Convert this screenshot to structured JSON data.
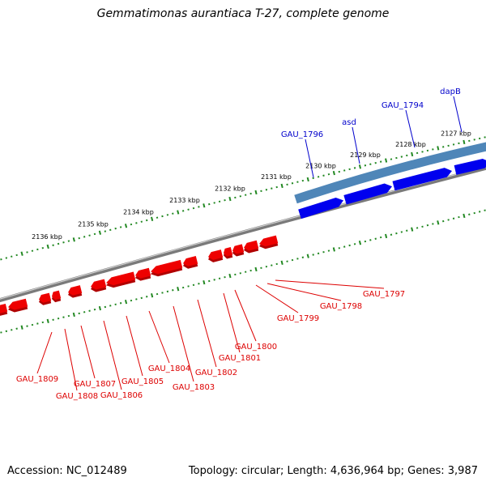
{
  "title": "Gemmatimonas aurantiaca T-27, complete genome",
  "footer": {
    "accession": "Accession: NC_012489",
    "summary": "Topology: circular; Length: 4,636,964 bp; Genes: 3,987"
  },
  "colors": {
    "backbone": "#7a7a7a",
    "tick": "#228822",
    "forward_gene": "#0000ee",
    "forward_gene_highlight": "#4f86b8",
    "reverse_gene": "#ee0000",
    "forward_label": "#0000cc",
    "reverse_label": "#dd0000"
  },
  "scale_labels": [
    "2127 kbp",
    "2128 kbp",
    "2129 kbp",
    "2130 kbp",
    "2131 kbp",
    "2132 kbp",
    "2133 kbp",
    "2134 kbp",
    "2135 kbp",
    "2136 kbp"
  ],
  "forward_genes": [
    "dapB",
    "GAU_1794",
    "asd",
    "GAU_1796"
  ],
  "reverse_genes": [
    "GAU_1797",
    "GAU_1798",
    "GAU_1799",
    "GAU_1800",
    "GAU_1801",
    "GAU_1802",
    "GAU_1803",
    "GAU_1804",
    "GAU_1805",
    "GAU_1806",
    "GAU_1807",
    "GAU_1808",
    "GAU_1809"
  ]
}
